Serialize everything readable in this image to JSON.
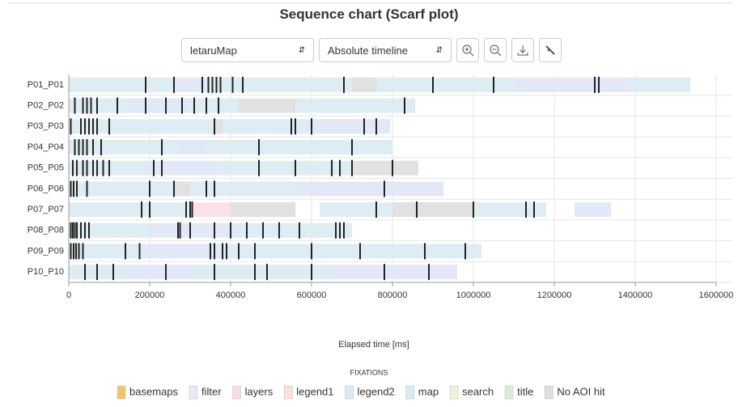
{
  "chart_data": {
    "type": "scarf",
    "title": "Sequence chart (Scarf plot)",
    "controls": [
      "letaruMap",
      "Absolute timeline"
    ],
    "xlabel": "Elapsed time [ms]",
    "xlim": [
      0,
      1600000
    ],
    "xticks": [
      0,
      200000,
      400000,
      600000,
      800000,
      1000000,
      1200000,
      1400000,
      1600000
    ],
    "grid": true,
    "legend_title": "FIXATIONS",
    "aois": [
      {
        "name": "basemaps",
        "color": "#f2c46d"
      },
      {
        "name": "filter",
        "color": "#ece6f7"
      },
      {
        "name": "layers",
        "color": "#f9dde6"
      },
      {
        "name": "legend1",
        "color": "#fbe1da"
      },
      {
        "name": "legend2",
        "color": "#dfe6f7"
      },
      {
        "name": "map",
        "color": "#d9ebf2"
      },
      {
        "name": "search",
        "color": "#eef3dc"
      },
      {
        "name": "title",
        "color": "#dcebd7"
      },
      {
        "name": "No AOI hit",
        "color": "#dedede"
      }
    ],
    "dark_color": "#222222",
    "rows": [
      {
        "name": "P01_P01",
        "segments": [
          [
            0,
            250000,
            "map"
          ],
          [
            250000,
            330000,
            "legend2"
          ],
          [
            330000,
            700000,
            "map"
          ],
          [
            700000,
            760000,
            "No AOI hit"
          ],
          [
            760000,
            1100000,
            "map"
          ],
          [
            1100000,
            1380000,
            "legend2"
          ],
          [
            1380000,
            1536000,
            "map"
          ]
        ],
        "marks": [
          190000,
          260000,
          330000,
          345000,
          355000,
          365000,
          375000,
          405000,
          430000,
          680000,
          900000,
          1050000,
          1300000,
          1310000
        ]
      },
      {
        "name": "P02_P02",
        "segments": [
          [
            0,
            150000,
            "map"
          ],
          [
            150000,
            300000,
            "legend2"
          ],
          [
            300000,
            420000,
            "map"
          ],
          [
            420000,
            560000,
            "No AOI hit"
          ],
          [
            560000,
            856000,
            "map"
          ]
        ],
        "marks": [
          15000,
          35000,
          45000,
          55000,
          70000,
          120000,
          190000,
          240000,
          280000,
          310000,
          340000,
          370000,
          830000
        ]
      },
      {
        "name": "P03_P03",
        "segments": [
          [
            0,
            120000,
            "map"
          ],
          [
            120000,
            360000,
            "map"
          ],
          [
            360000,
            380000,
            "No AOI hit"
          ],
          [
            380000,
            600000,
            "map"
          ],
          [
            600000,
            794000,
            "legend2"
          ]
        ],
        "marks": [
          5000,
          30000,
          40000,
          50000,
          60000,
          70000,
          100000,
          360000,
          550000,
          560000,
          600000,
          730000,
          760000
        ]
      },
      {
        "name": "P04_P04",
        "segments": [
          [
            0,
            270000,
            "map"
          ],
          [
            270000,
            340000,
            "legend2"
          ],
          [
            340000,
            560000,
            "map"
          ],
          [
            560000,
            800000,
            "map"
          ]
        ],
        "marks": [
          15000,
          25000,
          35000,
          45000,
          60000,
          80000,
          230000,
          470000,
          700000
        ]
      },
      {
        "name": "P05_P05",
        "segments": [
          [
            0,
            190000,
            "map"
          ],
          [
            190000,
            360000,
            "legend2"
          ],
          [
            360000,
            480000,
            "map"
          ],
          [
            480000,
            700000,
            "map"
          ],
          [
            700000,
            864000,
            "No AOI hit"
          ]
        ],
        "marks": [
          10000,
          20000,
          35000,
          45000,
          60000,
          70000,
          85000,
          100000,
          210000,
          230000,
          470000,
          560000,
          650000,
          670000,
          700000,
          800000
        ]
      },
      {
        "name": "P06_P06",
        "segments": [
          [
            0,
            260000,
            "map"
          ],
          [
            260000,
            300000,
            "No AOI hit"
          ],
          [
            300000,
            560000,
            "map"
          ],
          [
            560000,
            926000,
            "legend2"
          ]
        ],
        "marks": [
          5000,
          12000,
          20000,
          45000,
          200000,
          260000,
          340000,
          360000,
          780000
        ]
      },
      {
        "name": "P07_P07",
        "segments": [
          [
            0,
            300000,
            "map"
          ],
          [
            300000,
            400000,
            "layers"
          ],
          [
            400000,
            560000,
            "No AOI hit"
          ],
          [
            620000,
            800000,
            "map"
          ],
          [
            800000,
            1000000,
            "No AOI hit"
          ],
          [
            1000000,
            1180000,
            "map"
          ],
          [
            1250000,
            1340000,
            "legend2"
          ]
        ],
        "marks": [
          180000,
          200000,
          290000,
          300000,
          305000,
          760000,
          860000,
          1000000,
          1130000,
          1150000
        ]
      },
      {
        "name": "P08_P08",
        "segments": [
          [
            0,
            200000,
            "map"
          ],
          [
            200000,
            420000,
            "legend2"
          ],
          [
            420000,
            700000,
            "map"
          ]
        ],
        "marks": [
          5000,
          10000,
          15000,
          20000,
          30000,
          40000,
          50000,
          270000,
          275000,
          300000,
          360000,
          400000,
          440000,
          480000,
          520000,
          570000,
          660000,
          670000,
          680000
        ]
      },
      {
        "name": "P09_P09",
        "segments": [
          [
            0,
            180000,
            "map"
          ],
          [
            180000,
            360000,
            "legend2"
          ],
          [
            360000,
            620000,
            "map"
          ],
          [
            620000,
            1020000,
            "map"
          ]
        ],
        "marks": [
          5000,
          12000,
          18000,
          25000,
          35000,
          140000,
          175000,
          350000,
          360000,
          380000,
          390000,
          420000,
          460000,
          600000,
          720000,
          880000,
          980000
        ]
      },
      {
        "name": "P10_P10",
        "segments": [
          [
            0,
            150000,
            "map"
          ],
          [
            150000,
            300000,
            "legend2"
          ],
          [
            300000,
            650000,
            "map"
          ],
          [
            650000,
            960000,
            "legend2"
          ]
        ],
        "marks": [
          40000,
          70000,
          110000,
          240000,
          360000,
          460000,
          490000,
          600000,
          780000,
          890000
        ]
      }
    ]
  }
}
